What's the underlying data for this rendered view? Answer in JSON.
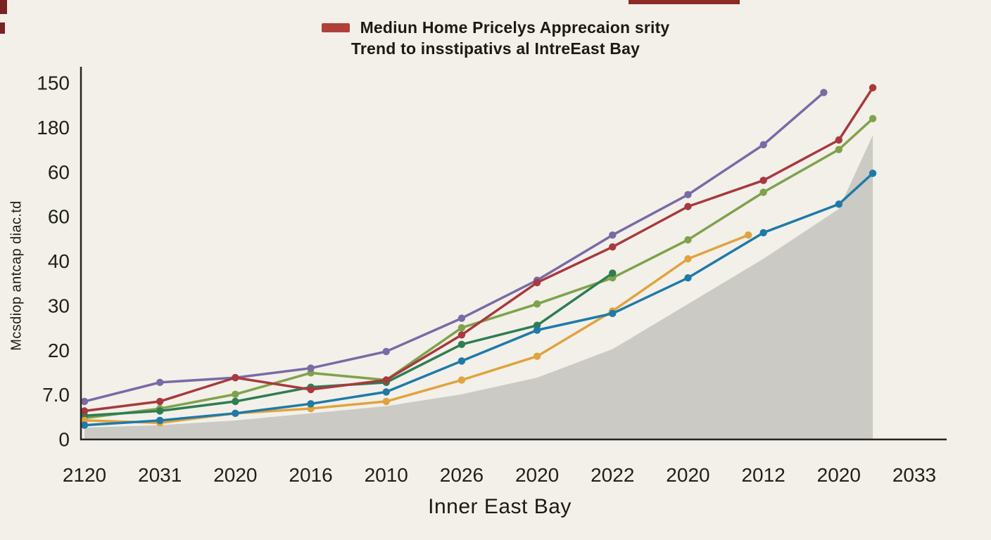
{
  "header": {
    "title_line1": "Mediun Home Pricelys Apprecaion srity",
    "title_line2": "Trend to insstipativs al IntreEast Bay",
    "legend_swatch_color": "#b04038"
  },
  "chart_data": {
    "type": "line",
    "title": "Mediun Home Pricelys Apprecaion srity Trend to insstipativs al IntreEast Bay",
    "xlabel": "Inner East Bay",
    "ylabel": "Mcsdiop antcap diac.td",
    "categories": [
      "2120",
      "2031",
      "2020",
      "2016",
      "2010",
      "2026",
      "2020",
      "2022",
      "2020",
      "2012",
      "2020",
      "2033"
    ],
    "ytick_labels": [
      "150",
      "180",
      "60",
      "60",
      "40",
      "30",
      "20",
      "7.0",
      "0"
    ],
    "value_range": [
      0,
      150
    ],
    "grid": false,
    "legend_position": "top-center",
    "axis_color": "#26241e",
    "background_color": "#f2f0e9",
    "area_series": {
      "name": "shaded-area",
      "color": "#c8c7c2",
      "opacity": 0.95,
      "values": [
        5,
        6,
        8,
        11,
        14,
        19,
        26,
        38,
        57,
        76,
        97,
        128
      ],
      "x_end": 10.45
    },
    "series": [
      {
        "name": "olive-green",
        "color": "#7fa24a",
        "values": [
          9,
          13,
          19,
          28,
          25,
          47,
          57,
          68,
          84,
          104,
          122,
          135
        ],
        "x_end": 10.45
      },
      {
        "name": "dark-green",
        "color": "#2f7d52",
        "values": [
          10,
          12,
          16,
          22,
          24,
          40,
          48,
          70
        ],
        "x_end": 7
      },
      {
        "name": "orange",
        "color": "#e0a33e",
        "values": [
          8,
          7,
          11,
          13,
          16,
          25,
          35,
          54,
          76,
          86
        ],
        "x_end": 8.8
      },
      {
        "name": "blue",
        "color": "#1f7aa8",
        "values": [
          6,
          8,
          11,
          15,
          20,
          33,
          46,
          53,
          68,
          87,
          99,
          112
        ],
        "x_end": 10.45
      },
      {
        "name": "purple",
        "color": "#7a6aa5",
        "values": [
          16,
          24,
          26,
          30,
          37,
          51,
          67,
          86,
          103,
          124,
          146
        ],
        "x_end": 9.8
      },
      {
        "name": "red",
        "color": "#a8393f",
        "values": [
          12,
          16,
          26,
          21,
          25,
          44,
          66,
          81,
          98,
          109,
          126,
          148
        ],
        "x_end": 10.45
      }
    ]
  },
  "artifacts": {
    "corner_mark": "#7a2322",
    "edge_streak": "#8c2a23"
  }
}
